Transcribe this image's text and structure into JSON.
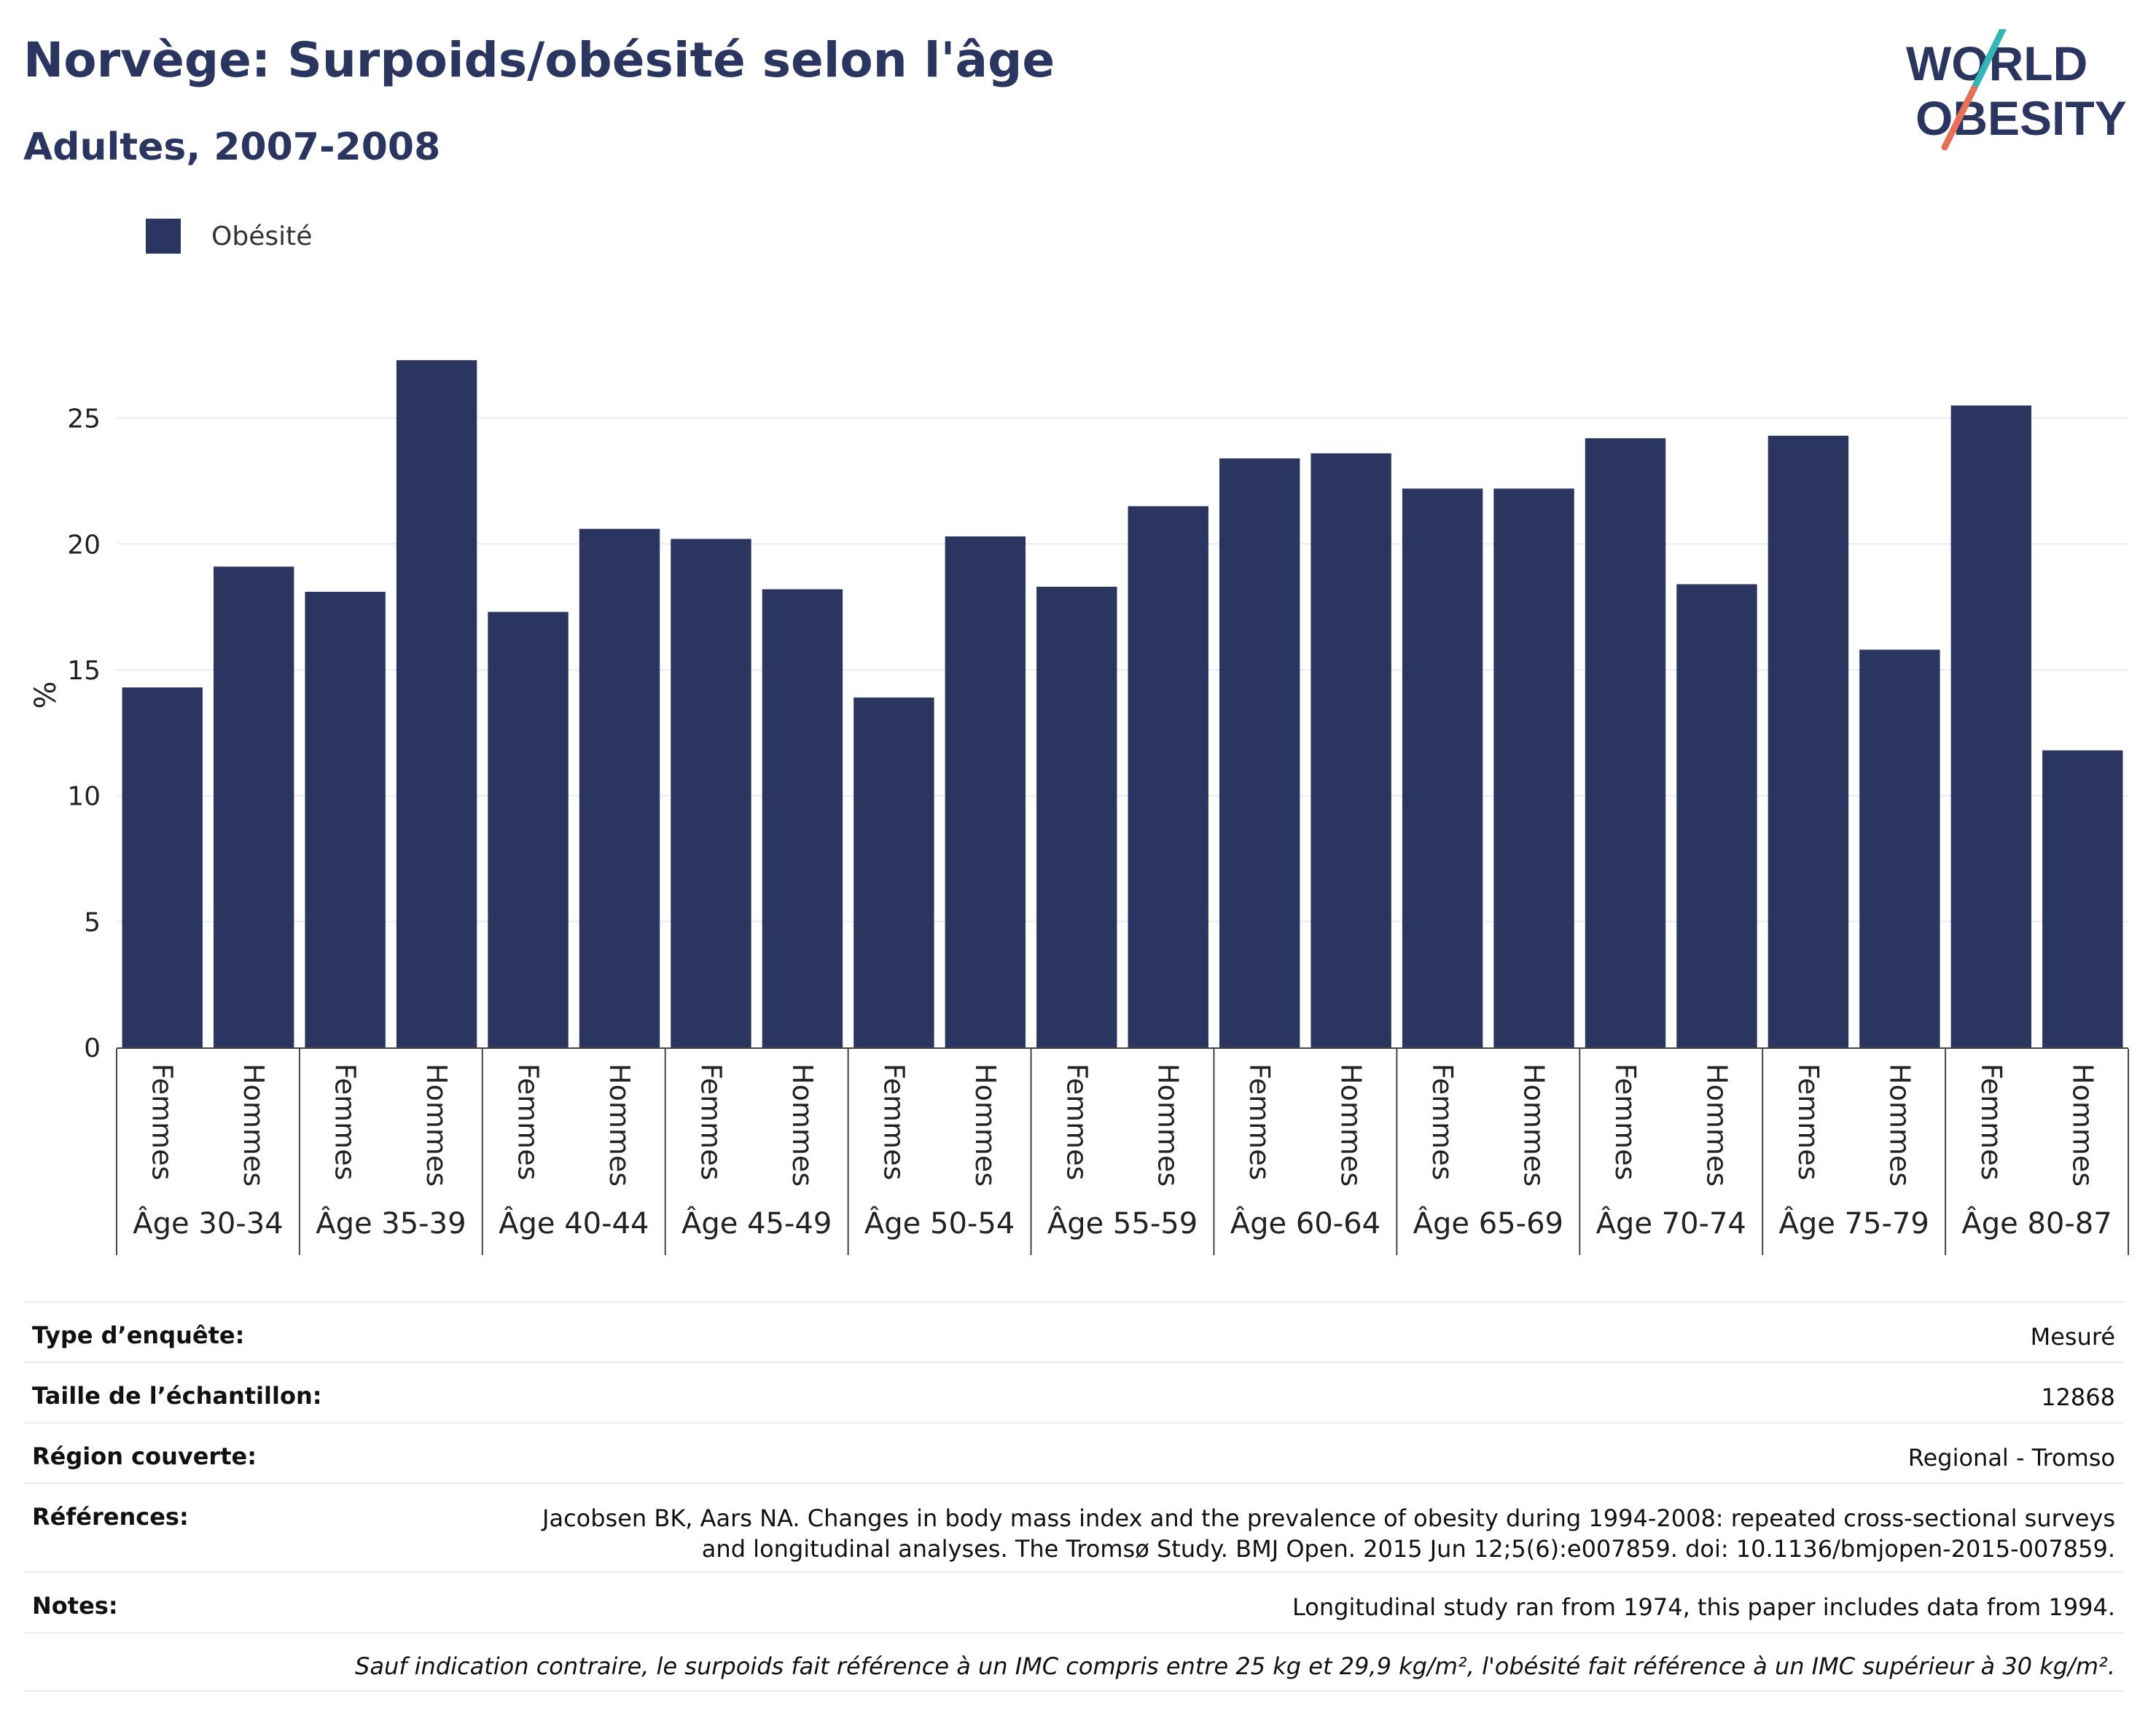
{
  "header": {
    "title": "Norvège: Surpoids/obésité selon l'âge",
    "subtitle": "Adultes, 2007-2008"
  },
  "logo": {
    "line1": "WORLD",
    "line2": "OBESITY"
  },
  "legend": {
    "label": "Obésité",
    "color": "#2a3560"
  },
  "chart_data": {
    "type": "bar",
    "title": "Norvège: Surpoids/obésité selon l'âge",
    "subtitle": "Adultes, 2007-2008",
    "ylabel": "%",
    "ylim": [
      0,
      28
    ],
    "yticks": [
      0,
      5,
      10,
      15,
      20,
      25
    ],
    "grid": true,
    "legend_position": "top-left",
    "groups": [
      "Âge 30-34",
      "Âge 35-39",
      "Âge 40-44",
      "Âge 45-49",
      "Âge 50-54",
      "Âge 55-59",
      "Âge 60-64",
      "Âge 65-69",
      "Âge 70-74",
      "Âge 75-79",
      "Âge 80-87"
    ],
    "subcategories": [
      "Femmes",
      "Hommes"
    ],
    "series": [
      {
        "name": "Obésité",
        "color": "#2a3560",
        "values": [
          14.3,
          19.1,
          18.1,
          27.3,
          17.3,
          20.6,
          20.2,
          18.2,
          13.9,
          20.3,
          18.3,
          21.5,
          23.4,
          23.6,
          22.2,
          22.2,
          24.2,
          18.4,
          24.3,
          15.8,
          25.5,
          11.8
        ]
      }
    ]
  },
  "info": {
    "rows": [
      {
        "label": "Type d’enquête:",
        "value": "Mesuré"
      },
      {
        "label": "Taille de l’échantillon:",
        "value": "12868"
      },
      {
        "label": "Région couverte:",
        "value": "Regional - Tromso"
      },
      {
        "label": "Références:",
        "value": "Jacobsen BK, Aars NA. Changes in body mass index and the prevalence of obesity during 1994-2008: repeated cross-sectional surveys\nand longitudinal analyses. The Tromsø Study. BMJ Open. 2015 Jun 12;5(6):e007859. doi: 10.1136/bmjopen-2015-007859."
      },
      {
        "label": "Notes:",
        "value": "Longitudinal study ran from 1974, this paper includes data from 1994."
      }
    ],
    "footnote": "Sauf indication contraire, le surpoids fait référence à un IMC compris entre 25 kg et 29,9 kg/m², l'obésité fait référence à un IMC supérieur à 30 kg/m²."
  }
}
